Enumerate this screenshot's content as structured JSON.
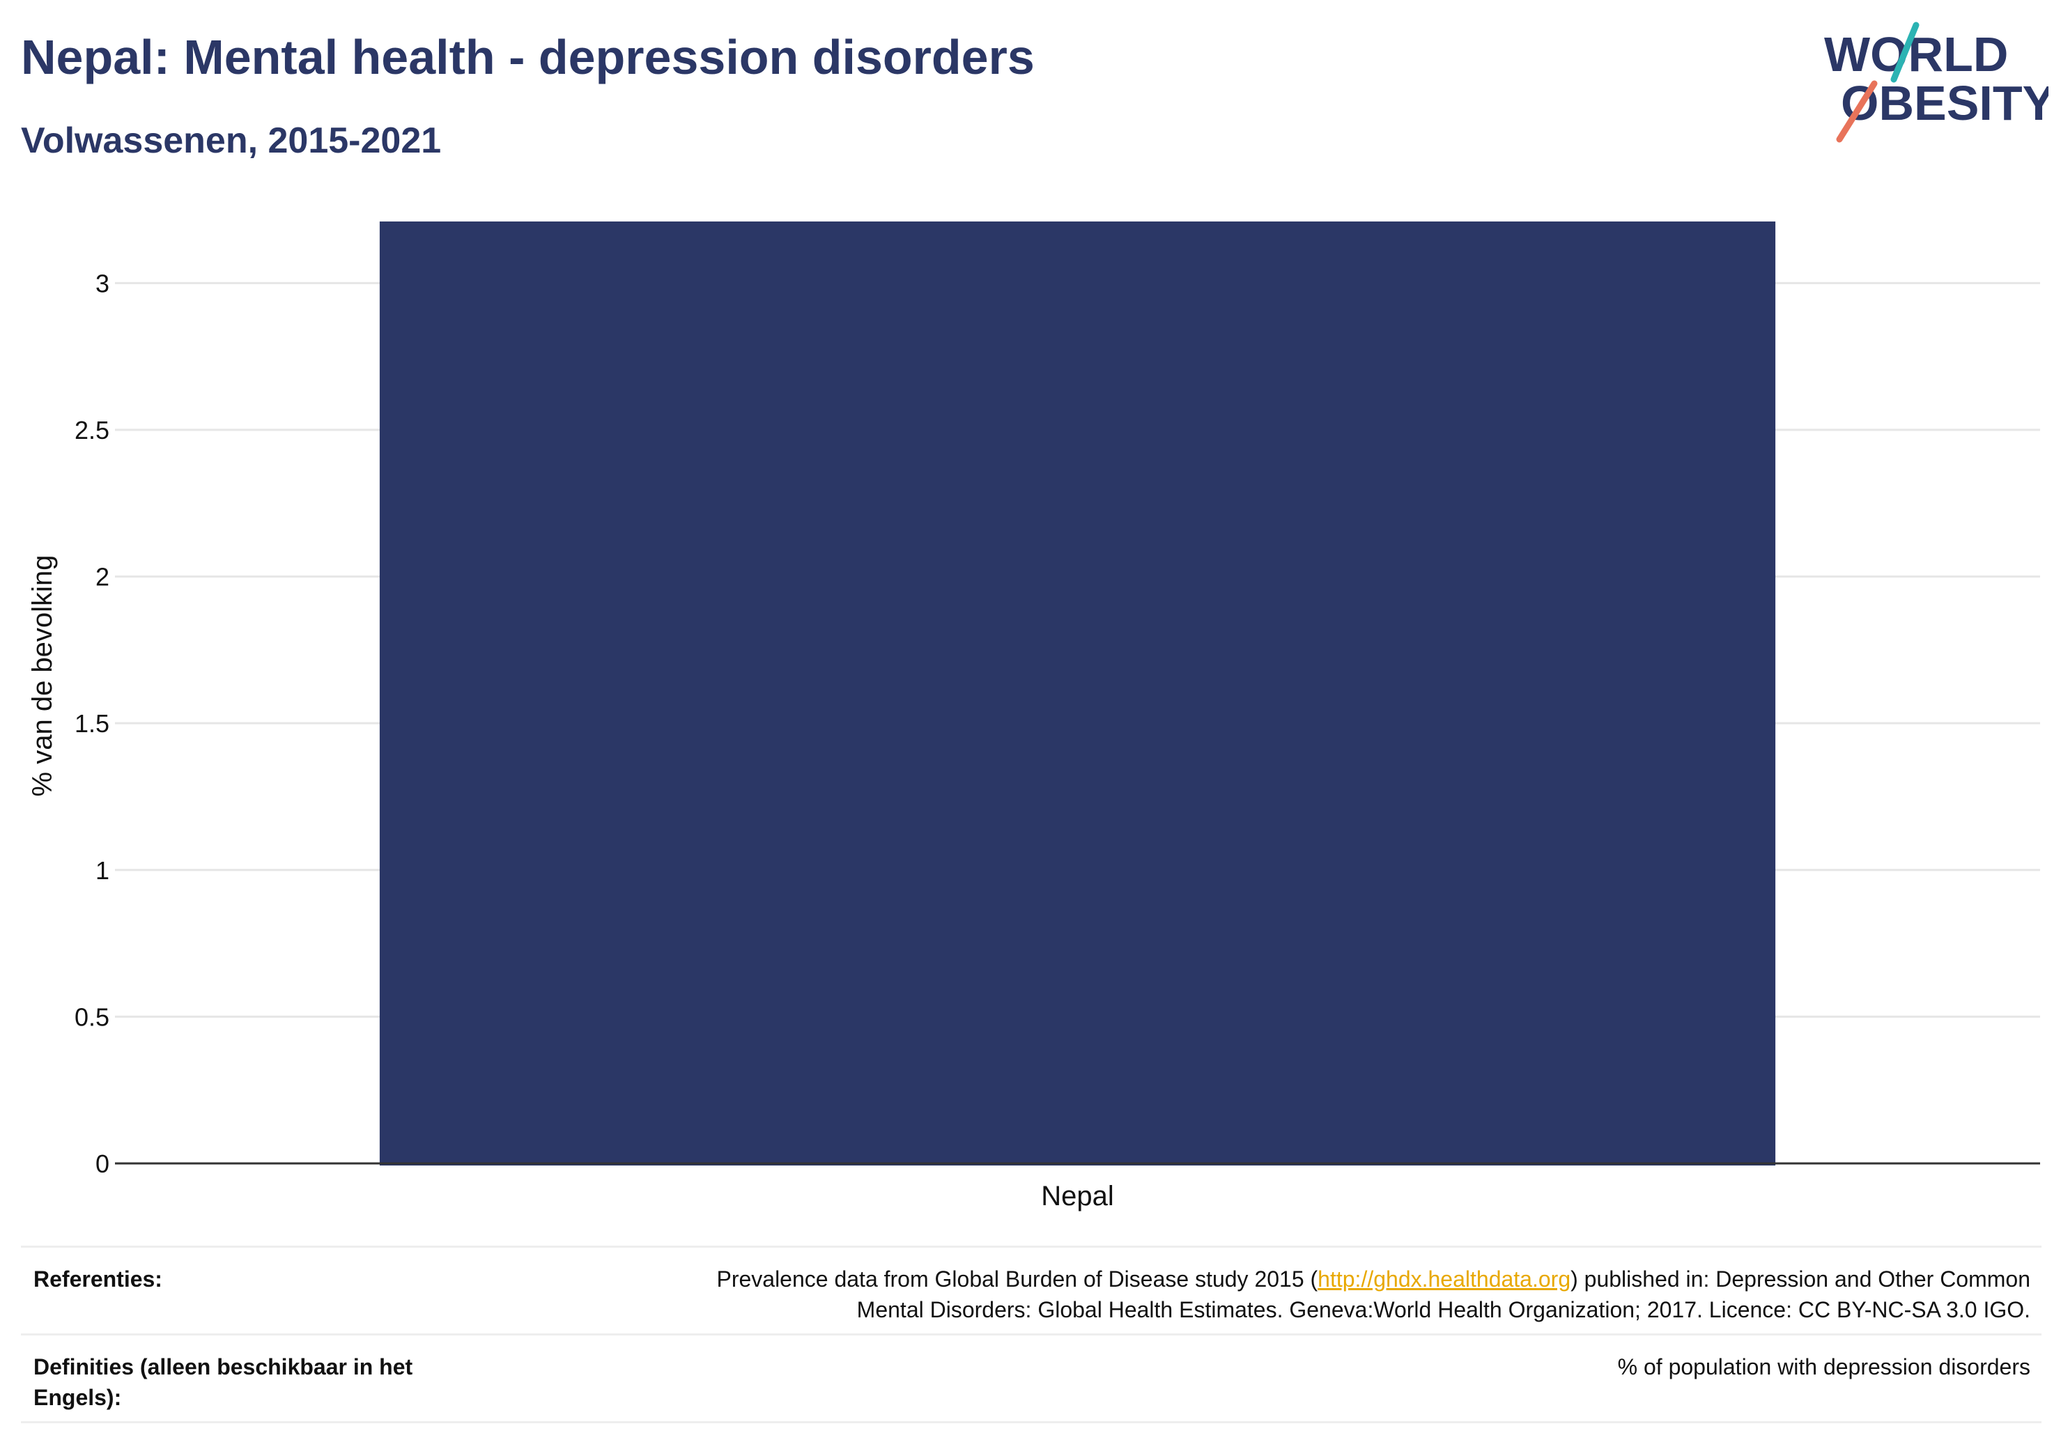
{
  "header": {
    "title": "Nepal: Mental health - depression disorders",
    "subtitle": "Volwassenen, 2015-2021"
  },
  "logo": {
    "line1": "WORLD",
    "line2": "OBESITY",
    "colors": {
      "text": "#2b3766",
      "slash_top": "#2bb3b3",
      "slash_bottom": "#e8735a"
    }
  },
  "chart_data": {
    "type": "bar",
    "categories": [
      "Nepal"
    ],
    "values": [
      3.21
    ],
    "title": "",
    "xlabel": "",
    "ylabel": "% van de bevolking",
    "ylim": [
      0,
      3.3
    ],
    "yticks": [
      "0",
      "0.5",
      "1",
      "1.5",
      "2",
      "2.5",
      "3"
    ],
    "grid": true,
    "bar_color": "#2b3766"
  },
  "footer": {
    "references_label": "Referenties:",
    "references_pre": "Prevalence data from Global Burden of Disease study 2015 (",
    "references_link": "http://ghdx.healthdata.org",
    "references_post": ") published in: Depression and Other Common",
    "references_line2": "Mental Disorders: Global Health Estimates. Geneva:World Health Organization; 2017. Licence: CC BY-NC-SA 3.0 IGO.",
    "definitions_label": "Definities (alleen beschikbaar in het Engels):",
    "definitions_value": "% of population with depression disorders"
  }
}
